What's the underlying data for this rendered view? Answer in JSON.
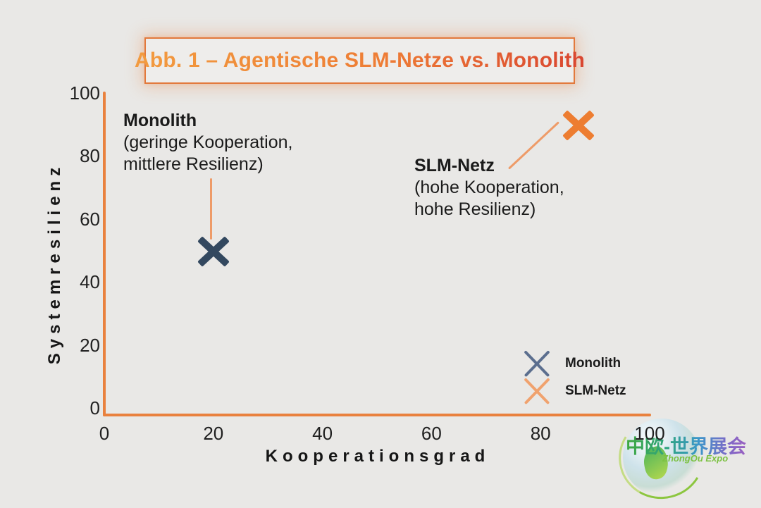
{
  "page": {
    "background": "#e9e8e6"
  },
  "title": {
    "text": "Abb. 1 – Agentische SLM-Netze vs. Monolith",
    "border_color": "#e2793c",
    "gradient_start": "#f29b3f",
    "gradient_end": "#d94530"
  },
  "chart_data": {
    "type": "scatter",
    "title": "Abb. 1 – Agentische SLM-Netze vs. Monolith",
    "xlabel": "Kooperationsgrad",
    "ylabel": "Systemresilienz",
    "xlim": [
      0,
      100
    ],
    "ylim": [
      0,
      100
    ],
    "x_ticks": [
      0,
      20,
      40,
      60,
      80,
      100
    ],
    "y_ticks": [
      0,
      20,
      40,
      60,
      80,
      100
    ],
    "grid": false,
    "axis_color": "#e9813e",
    "series": [
      {
        "name": "Monolith",
        "marker": "x",
        "color": "#33485f",
        "points": [
          [
            20,
            50
          ]
        ]
      },
      {
        "name": "SLM-Netz",
        "marker": "x",
        "color": "#ed7d31",
        "points": [
          [
            87,
            90
          ]
        ]
      }
    ],
    "annotations": [
      {
        "series": "Monolith",
        "title": "Monolith",
        "line1": "(geringe Kooperation,",
        "line2": "mittlere Resilienz)"
      },
      {
        "series": "SLM-Netz",
        "title": "SLM-Netz",
        "line1": "(hohe Kooperation,",
        "line2": "hohe Resilienz)"
      }
    ],
    "legend": {
      "position": "lower right",
      "items": [
        {
          "label": "Monolith",
          "marker_color": "#5b6e8e"
        },
        {
          "label": "SLM-Netz",
          "marker_color": "#f0a26e"
        }
      ]
    }
  },
  "watermark": {
    "main": "中欧-世界展会",
    "sub": "ZhongOu Expo"
  }
}
